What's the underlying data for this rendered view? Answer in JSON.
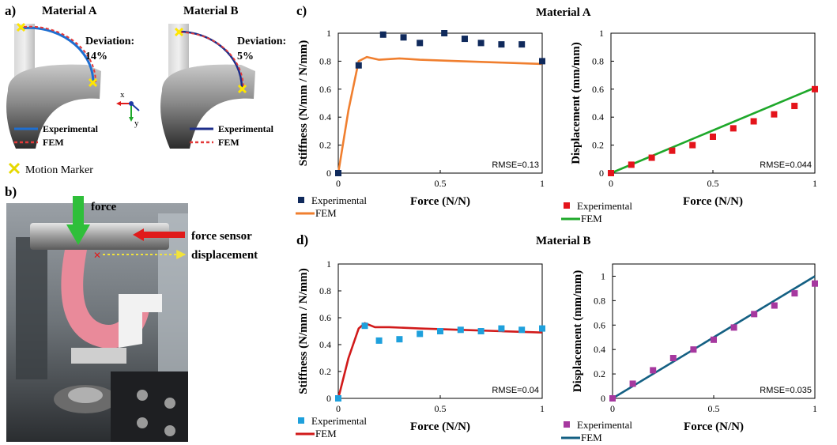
{
  "panel_labels": {
    "a": "a)",
    "b": "b)",
    "c": "c)",
    "d": "d)"
  },
  "panel_a": {
    "material_a_title": "Material A",
    "material_b_title": "Material B",
    "deviation_label": "Deviation:",
    "deviation_a": "14%",
    "deviation_b": "5%",
    "legend_experimental": "Experimental",
    "legend_fem": "FEM",
    "marker_label": "Motion Marker",
    "axis_x": "x",
    "axis_y": "y"
  },
  "panel_b": {
    "force_label": "force",
    "sensor_label": "force sensor",
    "displacement_label": "displacement"
  },
  "section_titles": {
    "c": "Material A",
    "d": "Material B"
  },
  "colors": {
    "orange": "#f07f2f",
    "navy": "#102a5c",
    "red": "#e4141b",
    "green": "#1ea82a",
    "cyan": "#1ea0dc",
    "crimson": "#d11a1a",
    "magenta": "#a6389f",
    "teal": "#146083"
  },
  "chart_data": [
    {
      "id": "c-left",
      "type": "scatter",
      "title": "",
      "xlabel": "Force (N/N)",
      "ylabel": "Stiffness (N/mm / N/mm)",
      "ylabel_main": "Stiffness",
      "xlim": [
        0,
        1
      ],
      "ylim": [
        0,
        1
      ],
      "xticks": [
        "0",
        "0.5",
        "1"
      ],
      "yticks": [
        "0",
        "0.2",
        "0.4",
        "0.6",
        "0.8",
        "1"
      ],
      "annotation": "RMSE=0.13",
      "legend": [
        "Experimental",
        "FEM"
      ],
      "series": [
        {
          "name": "Experimental",
          "kind": "markers",
          "color": "#102a5c",
          "x": [
            0,
            0.1,
            0.22,
            0.32,
            0.4,
            0.52,
            0.62,
            0.7,
            0.8,
            0.9,
            1.0
          ],
          "y": [
            0,
            0.77,
            0.99,
            0.97,
            0.93,
            1.0,
            0.96,
            0.93,
            0.92,
            0.92,
            0.8
          ]
        },
        {
          "name": "FEM",
          "kind": "line",
          "color": "#f07f2f",
          "x": [
            0,
            0.05,
            0.1,
            0.14,
            0.2,
            0.3,
            0.4,
            0.6,
            0.8,
            1.0
          ],
          "y": [
            0,
            0.45,
            0.8,
            0.83,
            0.81,
            0.82,
            0.81,
            0.8,
            0.79,
            0.78
          ]
        }
      ]
    },
    {
      "id": "c-right",
      "type": "scatter",
      "title": "",
      "xlabel": "Force (N/N)",
      "ylabel": "Displacement (mm/mm)",
      "xlim": [
        0,
        1
      ],
      "ylim": [
        0,
        1
      ],
      "xticks": [
        "0",
        "0.5",
        "1"
      ],
      "yticks": [
        "0",
        "0.2",
        "0.4",
        "0.6",
        "0.8",
        "1"
      ],
      "annotation": "RMSE=0.044",
      "legend": [
        "Experimental",
        "FEM"
      ],
      "series": [
        {
          "name": "Experimental",
          "kind": "markers",
          "color": "#e4141b",
          "x": [
            0,
            0.1,
            0.2,
            0.3,
            0.4,
            0.5,
            0.6,
            0.7,
            0.8,
            0.9,
            1.0
          ],
          "y": [
            0,
            0.06,
            0.11,
            0.16,
            0.2,
            0.26,
            0.32,
            0.37,
            0.42,
            0.48,
            0.6
          ]
        },
        {
          "name": "FEM",
          "kind": "line",
          "color": "#1ea82a",
          "x": [
            0,
            1.0
          ],
          "y": [
            0,
            0.61
          ]
        }
      ]
    },
    {
      "id": "d-left",
      "type": "scatter",
      "title": "",
      "xlabel": "Force (N/N)",
      "ylabel": "Stiffness (N/mm / N/mm)",
      "ylabel_main": "Stiffness",
      "xlim": [
        0,
        1
      ],
      "ylim": [
        0,
        1
      ],
      "xticks": [
        "0",
        "0.5",
        "1"
      ],
      "yticks": [
        "0",
        "0.2",
        "0.4",
        "0.6",
        "0.8",
        "1"
      ],
      "annotation": "RMSE=0.04",
      "legend": [
        "Experimental",
        "FEM"
      ],
      "series": [
        {
          "name": "Experimental",
          "kind": "markers",
          "color": "#1ea0dc",
          "x": [
            0,
            0.13,
            0.2,
            0.3,
            0.4,
            0.5,
            0.6,
            0.7,
            0.8,
            0.9,
            1.0
          ],
          "y": [
            0,
            0.54,
            0.43,
            0.44,
            0.48,
            0.5,
            0.51,
            0.5,
            0.52,
            0.51,
            0.52
          ]
        },
        {
          "name": "FEM",
          "kind": "line",
          "color": "#d11a1a",
          "x": [
            0,
            0.05,
            0.1,
            0.13,
            0.18,
            0.25,
            0.4,
            0.6,
            0.8,
            1.0
          ],
          "y": [
            0,
            0.3,
            0.52,
            0.56,
            0.53,
            0.53,
            0.52,
            0.51,
            0.5,
            0.49
          ]
        }
      ]
    },
    {
      "id": "d-right",
      "type": "scatter",
      "title": "",
      "xlabel": "Force (N/N)",
      "ylabel": "Displacement (mm/mm)",
      "xlim": [
        0,
        1
      ],
      "ylim": [
        0,
        1.1
      ],
      "xticks": [
        "0",
        "0.5",
        "1"
      ],
      "yticks": [
        "0",
        "0.2",
        "0.4",
        "0.6",
        "0.8",
        "1"
      ],
      "annotation": "RMSE=0.035",
      "legend": [
        "Experimental",
        "FEM"
      ],
      "series": [
        {
          "name": "Experimental",
          "kind": "markers",
          "color": "#a6389f",
          "x": [
            0,
            0.1,
            0.2,
            0.3,
            0.4,
            0.5,
            0.6,
            0.7,
            0.8,
            0.9,
            1.0
          ],
          "y": [
            0,
            0.12,
            0.23,
            0.33,
            0.4,
            0.48,
            0.58,
            0.69,
            0.76,
            0.86,
            0.94
          ]
        },
        {
          "name": "FEM",
          "kind": "line",
          "color": "#146083",
          "x": [
            0,
            1.0
          ],
          "y": [
            0,
            1.0
          ]
        }
      ]
    }
  ]
}
